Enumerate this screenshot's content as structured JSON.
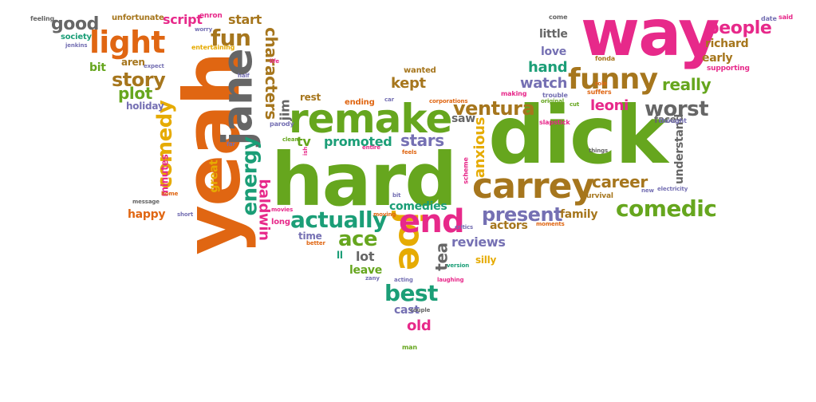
{
  "palette": {
    "orange": "#e06612",
    "green": "#66a61e",
    "pink": "#e7298a",
    "gold": "#e6ab02",
    "brown": "#a6761d",
    "teal": "#1b9e77",
    "purple": "#7570b3",
    "gray": "#666666"
  },
  "words": {
    "yeah": "yeah",
    "hard": "hard",
    "dick": "dick",
    "way": "way",
    "remake": "remake",
    "carrey": "carrey",
    "jane": "jane",
    "joe": "joe",
    "funny": "funny",
    "light": "light",
    "end": "end",
    "fun": "fun",
    "comedic": "comedic",
    "actually": "actually",
    "worst": "worst",
    "ventura": "ventura",
    "present": "present",
    "people": "people",
    "story": "story",
    "good": "good",
    "best": "best",
    "ace": "ace",
    "comedy": "comedy",
    "energy": "energy",
    "characters": "characters",
    "baldwin": "baldwin",
    "jim": "jim",
    "career": "career",
    "really": "really",
    "leoni": "leoni",
    "stars": "stars",
    "promoted": "promoted",
    "kept": "kept",
    "hand": "hand",
    "watch": "watch",
    "plot": "plot",
    "start": "start",
    "script": "script",
    "anxious": "anxious",
    "reviews": "reviews",
    "tea": "tea",
    "old": "old",
    "cast": "cast",
    "lot": "lot",
    "leave": "leave",
    "comedies": "comedies",
    "actors": "actors",
    "family": "family",
    "understand": "understand",
    "little": "little",
    "love": "love",
    "early": "early",
    "richard": "richard",
    "face": "face",
    "happy": "happy",
    "aren": "aren",
    "bit": "bit",
    "tv": "tv",
    "saw": "saw",
    "rest": "rest",
    "holiday": "holiday",
    "minutes": "minutes",
    "great": "great",
    "society": "society",
    "unfortunate": "unfortunate",
    "enron": "enron",
    "feeling": "feeling",
    "ending": "ending",
    "wanted": "wanted",
    "time": "time",
    "entertaining": "entertaining",
    "long": "long",
    "silly": "silly",
    "career_small": "ll",
    "fonda": "fonda",
    "supporting": "supporting",
    "date": "date",
    "said": "said",
    "come": "come",
    "making": "making",
    "trouble": "trouble",
    "suffers": "suffers",
    "slapstick": "slapstick",
    "thought": "thought",
    "survival": "survival",
    "electricity": "electricity",
    "new": "new",
    "corporations": "corporations",
    "car": "car",
    "parody": "parody",
    "clean": "clean",
    "scheme": "scheme",
    "feels": "feels",
    "entire": "entire",
    "critics": "critics",
    "version": "version",
    "laughing": "laughing",
    "acting": "acting",
    "zany": "zany",
    "couple": "couple",
    "man": "man",
    "better": "better",
    "moving": "moving",
    "movies": "movies",
    "short": "short",
    "message": "message",
    "home": "home",
    "bit2": "bit",
    "expect": "expect",
    "jenkins": "jenkins",
    "worry": "worry",
    "half": "half",
    "life": "life",
    "moments": "moments",
    "original": "original",
    "role": "role",
    "things": "things",
    "cut": "cut",
    "far": "far",
    "ish": "ish"
  }
}
